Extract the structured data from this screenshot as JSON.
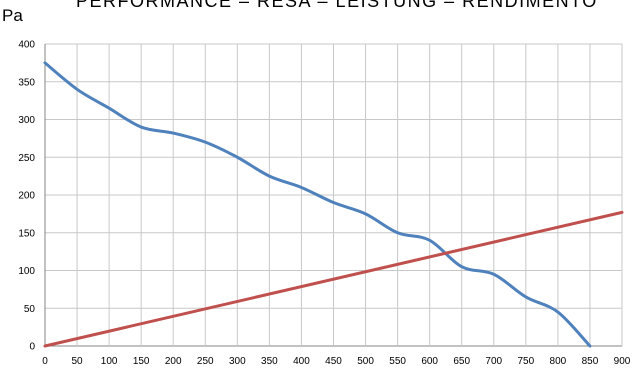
{
  "chart_data": {
    "type": "line",
    "title": "PERFORMANCE – RESA – LEISTUNG – RENDIMENTO",
    "xlabel": "",
    "ylabel": "Pa",
    "xlim": [
      0,
      900
    ],
    "ylim": [
      0,
      400
    ],
    "x_ticks": [
      0,
      50,
      100,
      150,
      200,
      250,
      300,
      350,
      400,
      450,
      500,
      550,
      600,
      650,
      700,
      750,
      800,
      850,
      900
    ],
    "y_ticks": [
      0,
      50,
      100,
      150,
      200,
      250,
      300,
      350,
      400
    ],
    "grid": true,
    "series": [
      {
        "color": "#4f81bd",
        "x": [
          0,
          50,
          100,
          150,
          200,
          250,
          300,
          350,
          400,
          450,
          500,
          550,
          600,
          650,
          700,
          750,
          800,
          850
        ],
        "y": [
          375,
          340,
          315,
          290,
          282,
          270,
          250,
          225,
          210,
          190,
          175,
          150,
          140,
          105,
          95,
          65,
          45,
          0
        ]
      },
      {
        "color": "#c0504d",
        "x": [
          0,
          900
        ],
        "y": [
          0,
          177
        ]
      }
    ]
  }
}
